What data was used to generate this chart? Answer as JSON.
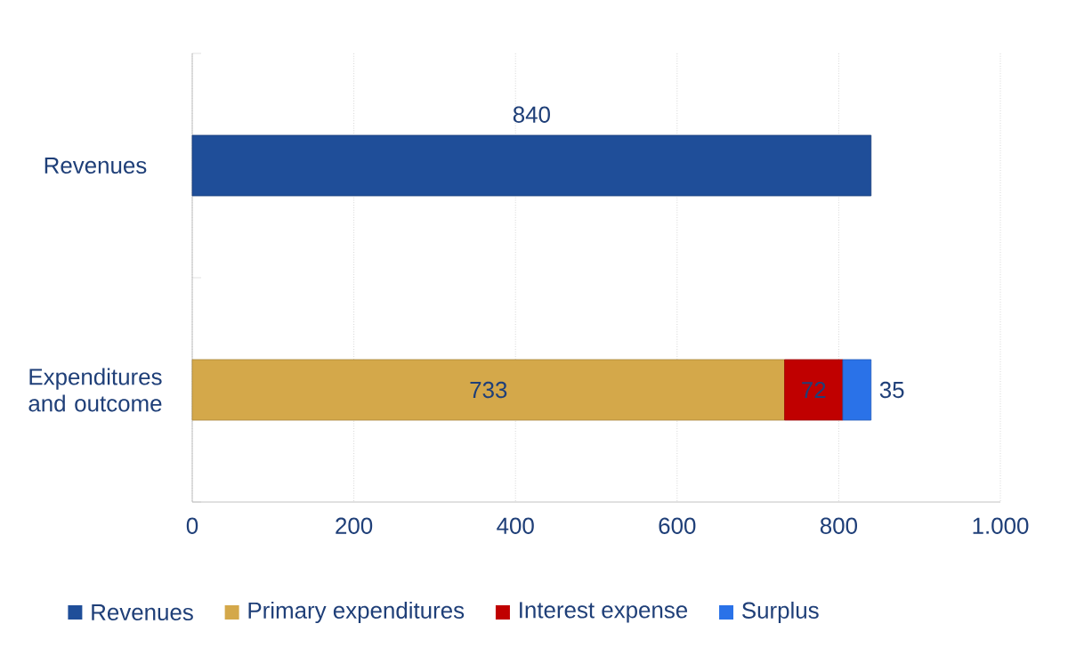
{
  "chart_data": {
    "type": "bar",
    "orientation": "horizontal",
    "stacked": true,
    "categories": [
      "Revenues",
      "Expenditures and outcome"
    ],
    "series": [
      {
        "name": "Revenues",
        "color": "#1f4e99",
        "values": [
          840,
          null
        ]
      },
      {
        "name": "Primary expenditures",
        "color": "#d4a84a",
        "values": [
          null,
          733
        ]
      },
      {
        "name": "Interest expense",
        "color": "#c00000",
        "values": [
          null,
          72
        ]
      },
      {
        "name": "Surplus",
        "color": "#2a72e8",
        "values": [
          null,
          35
        ]
      }
    ],
    "xlim": [
      0,
      1000
    ],
    "xticks": [
      0,
      200,
      400,
      600,
      800,
      {
        "value": 1000,
        "label": "1.000"
      }
    ],
    "grid": "x",
    "legend": "bottom",
    "data_labels": true
  }
}
